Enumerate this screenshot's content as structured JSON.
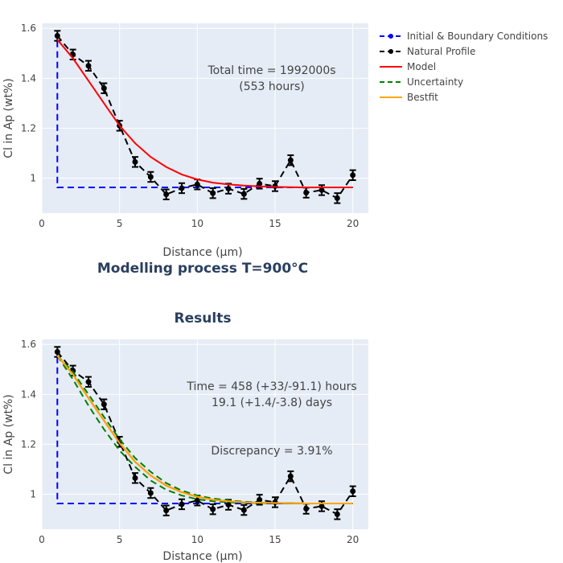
{
  "legend": [
    {
      "name": "Initial & Boundary Conditions",
      "color": "#0000ff",
      "dash": "dash",
      "marker": true
    },
    {
      "name": "Natural Profile",
      "color": "#000000",
      "dash": "dash",
      "marker": true
    },
    {
      "name": "Model",
      "color": "#ff0000",
      "dash": "solid",
      "marker": false
    },
    {
      "name": "Uncertainty",
      "color": "#008000",
      "dash": "dash",
      "marker": false
    },
    {
      "name": "Bestfit",
      "color": "#ffa500",
      "dash": "solid",
      "marker": false
    }
  ],
  "chart_data": [
    {
      "type": "line",
      "title": "Modelling process T=900°C",
      "xlabel": "Distance (μm)",
      "ylabel": "Cl in Ap (wt%)",
      "xlim": [
        0,
        21
      ],
      "ylim": [
        0.86,
        1.62
      ],
      "xticks": [
        0,
        5,
        10,
        15,
        20
      ],
      "yticks": [
        1,
        1.2,
        1.4,
        1.6
      ],
      "annotations": [
        "Total time = 1992000s",
        "(553 hours)"
      ],
      "series": [
        {
          "name": "Initial & Boundary Conditions",
          "type": "line",
          "x": [
            1,
            1,
            20
          ],
          "y": [
            1.55,
            0.963,
            0.963
          ]
        },
        {
          "name": "Natural Profile",
          "type": "line-markers-errorbars",
          "x": [
            1,
            2,
            3,
            4,
            5,
            6,
            7,
            8,
            9,
            10,
            11,
            12,
            13,
            14,
            15,
            16,
            17,
            18,
            19,
            20
          ],
          "y": [
            1.57,
            1.495,
            1.45,
            1.36,
            1.21,
            1.065,
            1.005,
            0.935,
            0.96,
            0.975,
            0.94,
            0.958,
            0.937,
            0.978,
            0.968,
            1.072,
            0.942,
            0.952,
            0.92,
            1.012
          ],
          "error": 0.02
        },
        {
          "name": "Model",
          "type": "line",
          "x": [
            1,
            2,
            3,
            4,
            5,
            6,
            7,
            8,
            9,
            10,
            11,
            12,
            13,
            14,
            15,
            16,
            17,
            18,
            19,
            20
          ],
          "y": [
            1.555,
            1.48,
            1.39,
            1.3,
            1.21,
            1.14,
            1.085,
            1.045,
            1.015,
            0.995,
            0.982,
            0.975,
            0.97,
            0.967,
            0.965,
            0.964,
            0.963,
            0.963,
            0.963,
            0.963
          ]
        }
      ]
    },
    {
      "type": "line",
      "title": "Results",
      "xlabel": "Distance (μm)",
      "ylabel": "Cl in Ap (wt%)",
      "xlim": [
        0,
        21
      ],
      "ylim": [
        0.86,
        1.62
      ],
      "xticks": [
        0,
        5,
        10,
        15,
        20
      ],
      "yticks": [
        1,
        1.2,
        1.4,
        1.6
      ],
      "annotations": [
        "Time = 458 (+33/-91.1) hours",
        "19.1 (+1.4/-3.8) days",
        "Discrepancy = 3.91%"
      ],
      "series": [
        {
          "name": "Initial & Boundary Conditions",
          "type": "line",
          "x": [
            1,
            1,
            20
          ],
          "y": [
            1.55,
            0.963,
            0.963
          ]
        },
        {
          "name": "Natural Profile",
          "type": "line-markers-errorbars",
          "x": [
            1,
            2,
            3,
            4,
            5,
            6,
            7,
            8,
            9,
            10,
            11,
            12,
            13,
            14,
            15,
            16,
            17,
            18,
            19,
            20
          ],
          "y": [
            1.57,
            1.495,
            1.45,
            1.36,
            1.21,
            1.065,
            1.005,
            0.935,
            0.96,
            0.975,
            0.94,
            0.958,
            0.937,
            0.978,
            0.968,
            1.072,
            0.942,
            0.952,
            0.92,
            1.012
          ],
          "error": 0.02
        },
        {
          "name": "Model",
          "type": "line",
          "x": [
            1,
            2,
            3,
            4,
            5,
            6,
            7,
            8,
            9,
            10,
            11,
            12,
            13,
            14,
            15,
            16,
            17,
            18,
            19,
            20
          ],
          "y": [
            1.555,
            1.48,
            1.385,
            1.295,
            1.205,
            1.13,
            1.075,
            1.035,
            1.008,
            0.99,
            0.978,
            0.972,
            0.968,
            0.966,
            0.965,
            0.964,
            0.963,
            0.963,
            0.963,
            0.963
          ]
        },
        {
          "name": "Uncertainty",
          "type": "line",
          "x": [
            1,
            2,
            3,
            4,
            5,
            6,
            7,
            8,
            9,
            10,
            11,
            12,
            13,
            14,
            15,
            16,
            17,
            18,
            19,
            20
          ],
          "y": [
            1.555,
            1.46,
            1.355,
            1.26,
            1.175,
            1.11,
            1.055,
            1.018,
            0.995,
            0.98,
            0.972,
            0.968,
            0.966,
            0.965,
            0.964,
            0.963,
            0.963,
            0.963,
            0.963,
            0.963
          ]
        },
        {
          "name": "Uncertainty",
          "type": "line",
          "x": [
            1,
            2,
            3,
            4,
            5,
            6,
            7,
            8,
            9,
            10,
            11,
            12,
            13,
            14,
            15,
            16,
            17,
            18,
            19,
            20
          ],
          "y": [
            1.555,
            1.49,
            1.4,
            1.31,
            1.22,
            1.145,
            1.09,
            1.045,
            1.015,
            0.995,
            0.983,
            0.975,
            0.97,
            0.967,
            0.965,
            0.964,
            0.963,
            0.963,
            0.963,
            0.963
          ]
        },
        {
          "name": "Bestfit",
          "type": "line",
          "x": [
            1,
            2,
            3,
            4,
            5,
            6,
            7,
            8,
            9,
            10,
            11,
            12,
            13,
            14,
            15,
            16,
            17,
            18,
            19,
            20
          ],
          "y": [
            1.555,
            1.48,
            1.385,
            1.295,
            1.205,
            1.13,
            1.075,
            1.035,
            1.008,
            0.99,
            0.978,
            0.972,
            0.968,
            0.966,
            0.965,
            0.964,
            0.963,
            0.963,
            0.963,
            0.963
          ]
        }
      ]
    }
  ]
}
